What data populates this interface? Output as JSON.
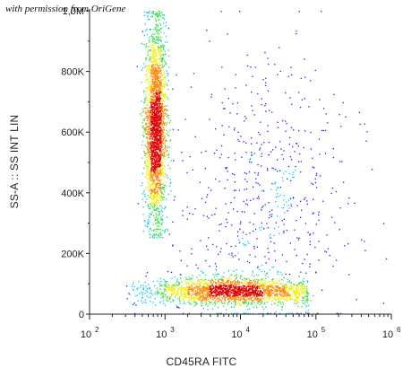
{
  "credit_text": "with permission from OriGene",
  "chart_data": {
    "type": "scatter",
    "title": "",
    "xlabel": "CD45RA FITC",
    "ylabel": "SS-A :: SS INT LIN",
    "x_scale": "log",
    "xlim": [
      100,
      1000000
    ],
    "ylim": [
      0,
      1000000
    ],
    "x_ticks": [
      {
        "value": 100,
        "base": "10",
        "exp": "2"
      },
      {
        "value": 1000,
        "base": "10",
        "exp": "3"
      },
      {
        "value": 10000,
        "base": "10",
        "exp": "4"
      },
      {
        "value": 100000,
        "base": "10",
        "exp": "5"
      },
      {
        "value": 1000000,
        "base": "10",
        "exp": "6"
      }
    ],
    "y_ticks": [
      {
        "value": 0,
        "label": "0"
      },
      {
        "value": 200000,
        "label": "200K"
      },
      {
        "value": 400000,
        "label": "400K"
      },
      {
        "value": 600000,
        "label": "600K"
      },
      {
        "value": 800000,
        "label": "800K"
      },
      {
        "value": 1000000,
        "label": "1,0M"
      }
    ],
    "grid": false,
    "colormap": [
      "#1a1aff",
      "#00c8ff",
      "#30e040",
      "#f0f000",
      "#ff8800",
      "#e00000"
    ],
    "populations": [
      {
        "x_center": 750,
        "y_center": 620000,
        "x_spread_decades": 0.07,
        "y_spread": 170000,
        "y_range": [
          250000,
          1000000
        ],
        "relative_count": 0.47
      },
      {
        "x_center": 8000,
        "y_center": 75000,
        "x_spread_decades": 0.55,
        "y_spread": 22000,
        "x_range": [
          300,
          80000
        ],
        "relative_count": 0.4
      },
      {
        "x_center": 20000,
        "y_center": 350000,
        "x_spread_decades": 0.55,
        "y_spread": 250000,
        "relative_count": 0.13
      }
    ]
  }
}
